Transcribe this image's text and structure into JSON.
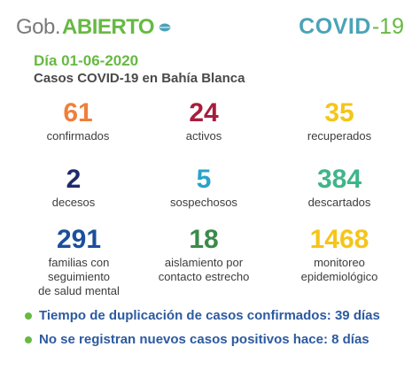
{
  "header": {
    "logo_gob": "Gob.",
    "logo_abierto": "ABIERTO",
    "covid_word": "COVID",
    "covid_num": "-19"
  },
  "date_line": "Día 01-06-2020",
  "subtitle": "Casos COVID-19 en Bahía Blanca",
  "stats": [
    {
      "value": "61",
      "label": "confirmados",
      "color": "#f07f3a"
    },
    {
      "value": "24",
      "label": "activos",
      "color": "#a81d3c"
    },
    {
      "value": "35",
      "label": "recuperados",
      "color": "#f5c518"
    },
    {
      "value": "2",
      "label": "decesos",
      "color": "#1f2a6b"
    },
    {
      "value": "5",
      "label": "sospechosos",
      "color": "#2aa3c8"
    },
    {
      "value": "384",
      "label": "descartados",
      "color": "#3fb58a"
    },
    {
      "value": "291",
      "label_lines": [
        "familias con",
        "seguimiento",
        "de salud mental"
      ],
      "color": "#1c4f9c"
    },
    {
      "value": "18",
      "label_lines": [
        "aislamiento por",
        "contacto estrecho"
      ],
      "color": "#3a8a4a"
    },
    {
      "value": "1468",
      "label_lines": [
        "monitoreo",
        "epidemiológico"
      ],
      "color": "#f5c518"
    }
  ],
  "notes": [
    "Tiempo de duplicación de casos confirmados: 39 días",
    "No se registran nuevos casos positivos hace: 8 días"
  ]
}
